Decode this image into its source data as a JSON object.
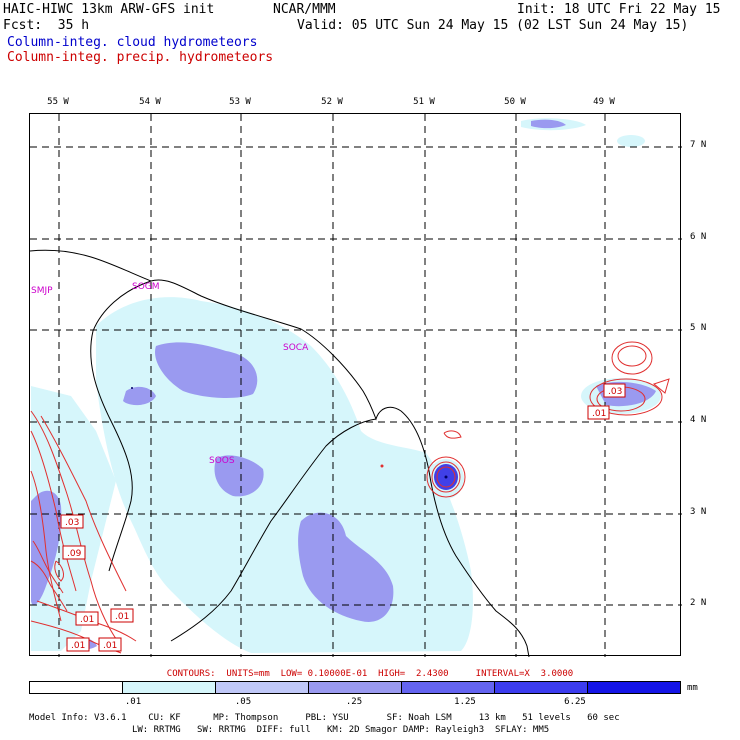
{
  "header": {
    "model": "HAIC-HIWC 13km ARW-GFS init",
    "center": "NCAR/MMM",
    "init": "Init: 18 UTC Fri 22 May 15",
    "fcst": "Fcst:  35 h",
    "valid": "Valid: 05 UTC Sun 24 May 15 (02 LST Sun 24 May 15)",
    "field1": "Column-integ. cloud hydrometeors",
    "field2": "Column-integ. precip. hydrometeors"
  },
  "lon_labels": [
    "55 W",
    "54 W",
    "53 W",
    "52 W",
    "51 W",
    "50 W",
    "49 W"
  ],
  "lat_labels": [
    "7 N",
    "6 N",
    "5 N",
    "4 N",
    "3 N",
    "2 N"
  ],
  "stations": [
    "SMJP",
    "SOGM",
    "SOCA",
    "SOOS"
  ],
  "contour_labels": [
    ".03",
    ".01",
    ".03",
    ".09",
    ".01",
    ".01",
    ".01",
    ".01"
  ],
  "contours_text": "CONTOURS:  UNITS=mm  LOW= 0.10000E-01  HIGH=  2.4300     INTERVAL=X  3.0000",
  "colorbar": {
    "ticks": [
      ".01",
      ".05",
      ".25",
      "1.25",
      "6.25"
    ],
    "units": "mm",
    "colors": [
      "#ffffff",
      "#d6f6fb",
      "#c0c8f8",
      "#9a9af0",
      "#6464f0",
      "#3c3cee",
      "#1414e6"
    ]
  },
  "footer": {
    "line1": "Model Info: V3.6.1    CU: KF      MP: Thompson     PBL: YSU       SF: Noah LSM     13 km   51 levels   60 sec",
    "line2": "                   LW: RRTMG   SW: RRTMG  DIFF: full   KM: 2D Smagor DAMP: Rayleigh3  SFLAY: MM5"
  }
}
